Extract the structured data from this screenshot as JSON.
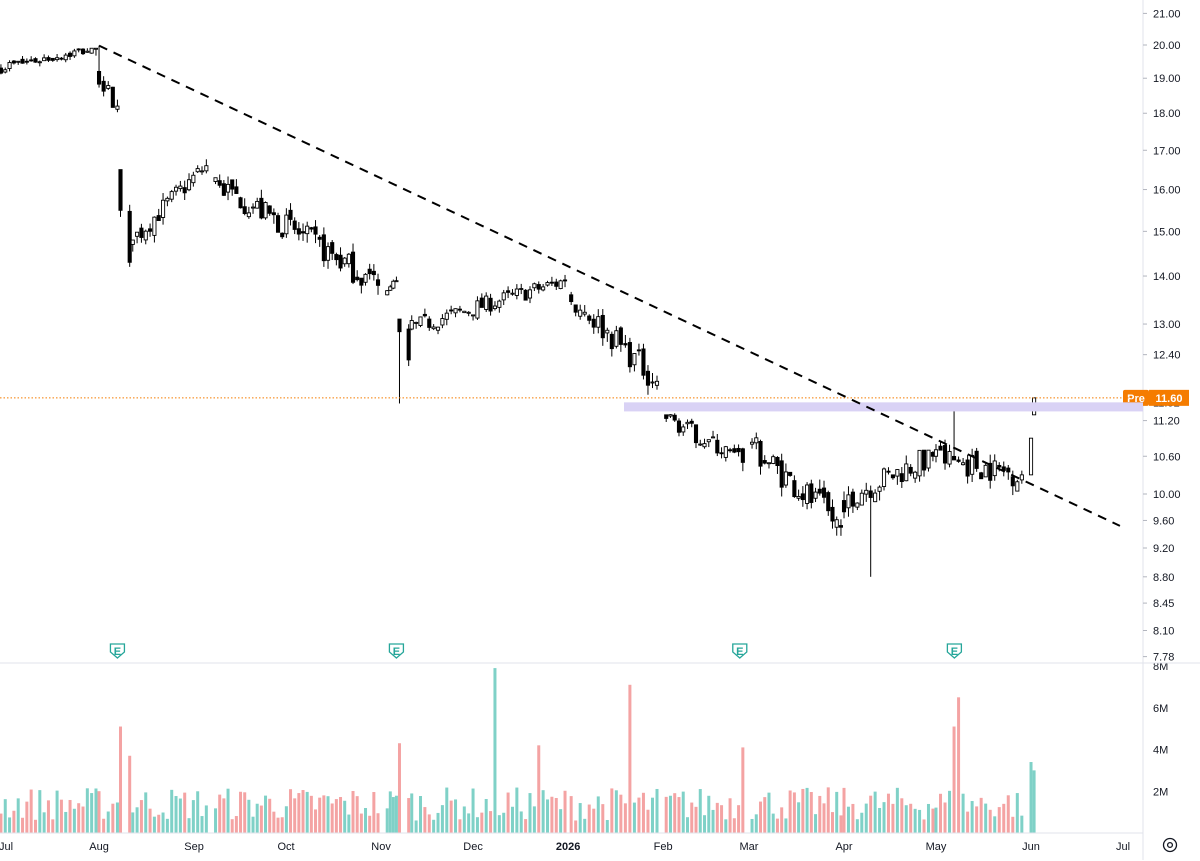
{
  "chart_data": {
    "type": "candlestick",
    "price_scale": "log",
    "y_tick_labels": [
      "21.00",
      "20.00",
      "19.00",
      "18.00",
      "17.00",
      "16.00",
      "15.00",
      "14.00",
      "13.00",
      "12.40",
      "11.52",
      "11.20",
      "10.60",
      "10.00",
      "9.60",
      "9.20",
      "8.80",
      "8.45",
      "8.10",
      "7.78"
    ],
    "x_tick_labels": [
      "Jul",
      "Aug",
      "Sep",
      "Oct",
      "Nov",
      "Dec",
      "2026",
      "Feb",
      "Mar",
      "Apr",
      "May",
      "Jun",
      "Jul"
    ],
    "volume_tick_labels": [
      "8M",
      "6M",
      "4M",
      "2M"
    ],
    "premarket": {
      "label": "Pre",
      "price": "11.60",
      "color": "#f57c00"
    },
    "resistance_zone": {
      "low": 11.36,
      "high": 11.52,
      "color": "#d9d2f5"
    },
    "trendline": {
      "style": "dashed",
      "from": {
        "date": "2025-08-01",
        "price": 19.98
      },
      "to": {
        "date": "2026-06-30",
        "price": 9.52
      }
    },
    "earnings_markers": [
      {
        "date": "2025-08-07",
        "symbol": "E"
      },
      {
        "date": "2025-11-06",
        "symbol": "E"
      },
      {
        "date": "2026-02-26",
        "symbol": "E"
      },
      {
        "date": "2026-05-07",
        "symbol": "E"
      }
    ],
    "colors": {
      "up_volume": "#7fd1c7",
      "down_volume": "#f4a3a3",
      "candle": "#000000",
      "earnings": "#26a69a"
    },
    "series": [
      {
        "name": "price",
        "segments": [
          {
            "from": "2025-06-30",
            "to": "2025-07-31",
            "start": 19.3,
            "end": 19.9,
            "low": 18.3,
            "high": 19.9,
            "days": 23
          },
          {
            "from": "2025-08-01",
            "to": "2025-08-07",
            "start": 19.2,
            "end": 18.2,
            "low": 17.0,
            "high": 19.2,
            "days": 5
          },
          {
            "from": "2025-08-08",
            "to": "2025-08-11",
            "start": 16.5,
            "end": 14.3,
            "low": 14.2,
            "high": 16.5,
            "days": 2
          },
          {
            "from": "2025-08-12",
            "to": "2025-09-05",
            "start": 14.7,
            "end": 16.6,
            "low": 14.5,
            "high": 16.8,
            "days": 18
          },
          {
            "from": "2025-09-08",
            "to": "2025-10-31",
            "start": 16.2,
            "end": 13.8,
            "low": 13.6,
            "high": 16.4,
            "days": 40
          },
          {
            "from": "2025-11-03",
            "to": "2025-11-06",
            "start": 13.6,
            "end": 13.9,
            "low": 13.5,
            "high": 14.2,
            "days": 4
          },
          {
            "from": "2025-11-07",
            "to": "2025-11-10",
            "start": 13.1,
            "end": 12.3,
            "low": 11.5,
            "high": 13.1,
            "days": 2
          },
          {
            "from": "2025-11-11",
            "to": "2025-12-31",
            "start": 12.9,
            "end": 13.9,
            "low": 12.5,
            "high": 14.1,
            "days": 36
          },
          {
            "from": "2026-01-02",
            "to": "2026-01-30",
            "start": 13.6,
            "end": 11.9,
            "low": 11.6,
            "high": 13.9,
            "days": 20
          },
          {
            "from": "2026-02-02",
            "to": "2026-02-27",
            "start": 11.3,
            "end": 10.5,
            "low": 10.1,
            "high": 11.5,
            "days": 19
          },
          {
            "from": "2026-03-02",
            "to": "2026-03-31",
            "start": 10.8,
            "end": 9.5,
            "low": 9.3,
            "high": 11.4,
            "days": 22
          },
          {
            "from": "2026-04-01",
            "to": "2026-04-30",
            "start": 9.9,
            "end": 10.6,
            "low": 8.8,
            "high": 10.7,
            "days": 21
          },
          {
            "from": "2026-05-01",
            "to": "2026-05-29",
            "start": 10.6,
            "end": 10.3,
            "low": 9.6,
            "high": 11.5,
            "days": 20
          },
          {
            "from": "2026-06-01",
            "to": "2026-06-01",
            "start": 10.3,
            "end": 10.9,
            "low": 10.3,
            "high": 10.9,
            "days": 1
          },
          {
            "from": "2026-06-02",
            "to": "2026-06-02",
            "start": 11.3,
            "end": 11.6,
            "low": 11.3,
            "high": 11.6,
            "days": 1
          }
        ]
      },
      {
        "name": "volume",
        "typical_millions": [
          0.6,
          2.2
        ],
        "spikes": [
          {
            "date": "2025-08-08",
            "value_millions": 5.1
          },
          {
            "date": "2025-08-11",
            "value_millions": 3.7
          },
          {
            "date": "2025-11-07",
            "value_millions": 4.3
          },
          {
            "date": "2025-12-08",
            "value_millions": 7.9
          },
          {
            "date": "2025-12-22",
            "value_millions": 4.2
          },
          {
            "date": "2025-12-23",
            "value_millions": 4.5
          },
          {
            "date": "2026-01-21",
            "value_millions": 7.1
          },
          {
            "date": "2026-02-27",
            "value_millions": 4.1
          },
          {
            "date": "2026-05-07",
            "value_millions": 5.1
          },
          {
            "date": "2026-05-08",
            "value_millions": 6.5
          },
          {
            "date": "2026-06-01",
            "value_millions": 3.4
          },
          {
            "date": "2026-06-02",
            "value_millions": 3.0
          }
        ]
      }
    ]
  },
  "controls": {
    "settings_icon": "settings-icon"
  }
}
